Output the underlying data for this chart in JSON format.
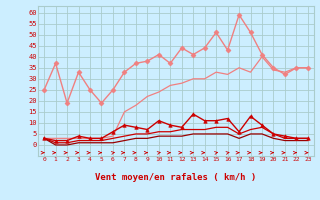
{
  "x": [
    0,
    1,
    2,
    3,
    4,
    5,
    6,
    7,
    8,
    9,
    10,
    11,
    12,
    13,
    14,
    15,
    16,
    17,
    18,
    19,
    20,
    21,
    22,
    23
  ],
  "series": [
    {
      "name": "rafales_max",
      "y": [
        25,
        37,
        19,
        33,
        25,
        19,
        25,
        33,
        37,
        38,
        41,
        37,
        44,
        41,
        44,
        51,
        43,
        59,
        51,
        41,
        35,
        32,
        35,
        35
      ],
      "color": "#f08080",
      "lw": 1.0,
      "marker": "D",
      "ms": 2.5,
      "zorder": 3
    },
    {
      "name": "rafales_mean",
      "y": [
        3,
        3,
        3,
        3,
        3,
        3,
        4,
        15,
        18,
        22,
        24,
        27,
        28,
        30,
        30,
        33,
        32,
        35,
        33,
        40,
        34,
        33,
        35,
        35
      ],
      "color": "#f08080",
      "lw": 0.9,
      "marker": null,
      "ms": 0,
      "zorder": 2
    },
    {
      "name": "vent_max",
      "y": [
        3,
        2,
        2,
        4,
        3,
        3,
        6,
        9,
        8,
        7,
        11,
        9,
        8,
        14,
        11,
        11,
        12,
        6,
        13,
        9,
        5,
        4,
        3,
        3
      ],
      "color": "#cc0000",
      "lw": 1.0,
      "marker": "^",
      "ms": 2.5,
      "zorder": 3
    },
    {
      "name": "vent_mean",
      "y": [
        3,
        1,
        1,
        2,
        2,
        2,
        3,
        4,
        5,
        5,
        6,
        6,
        7,
        7,
        7,
        8,
        8,
        5,
        7,
        8,
        5,
        3,
        3,
        3
      ],
      "color": "#cc0000",
      "lw": 0.9,
      "marker": null,
      "ms": 0,
      "zorder": 2
    },
    {
      "name": "vent_min",
      "y": [
        3,
        0,
        0,
        1,
        1,
        1,
        1,
        2,
        3,
        3,
        4,
        4,
        4,
        5,
        5,
        5,
        5,
        3,
        5,
        5,
        3,
        2,
        2,
        2
      ],
      "color": "#990000",
      "lw": 0.9,
      "marker": null,
      "ms": 0,
      "zorder": 2
    }
  ],
  "xlabel": "Vent moyen/en rafales ( km/h )",
  "ylim": [
    -5,
    63
  ],
  "yticks": [
    0,
    5,
    10,
    15,
    20,
    25,
    30,
    35,
    40,
    45,
    50,
    55,
    60
  ],
  "bg_color": "#cceeff",
  "grid_color": "#aacccc",
  "xlabel_color": "#cc0000",
  "tick_color": "#cc0000",
  "arrow_color": "#cc0000"
}
